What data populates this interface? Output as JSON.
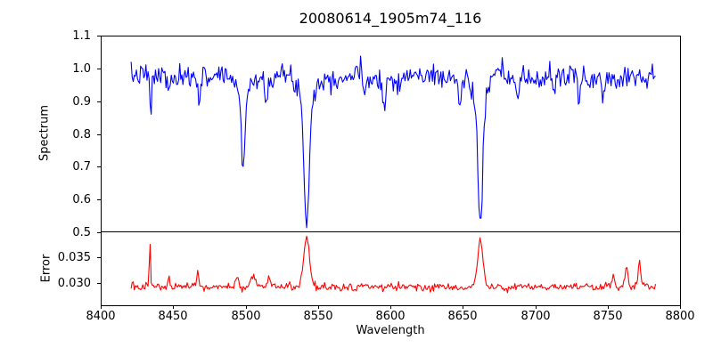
{
  "figure": {
    "title": "20080614_1905m74_116",
    "background_color": "#ffffff",
    "axis_color": "#000000"
  },
  "chart_data": [
    {
      "type": "line",
      "series_name": "spectrum",
      "line_color": "#0000ff",
      "ylabel": "Spectrum",
      "xlim": [
        8400,
        8800
      ],
      "ylim": [
        0.5,
        1.1
      ],
      "ytick_labels": [
        "1.1",
        "1.0",
        "0.9",
        "0.8",
        "0.7",
        "0.6",
        "0.5"
      ],
      "x_data_range": [
        8421,
        8783.5
      ],
      "sample_step": 0.73,
      "continuum": {
        "base": 0.973,
        "wiggles": [
          {
            "amp": 0.006,
            "period": 48
          },
          {
            "amp": 0.004,
            "period": 19
          }
        ]
      },
      "noise_std": 0.017,
      "noise_seed": 7,
      "value_clamp": [
        0.505,
        1.095
      ],
      "absorption_lines": [
        {
          "center": 8434.5,
          "depth": 0.115,
          "width": 0.6
        },
        {
          "center": 8447.0,
          "depth": 0.055,
          "width": 0.7
        },
        {
          "center": 8468.0,
          "depth": 0.06,
          "width": 0.8
        },
        {
          "center": 8498.3,
          "depth": 0.22,
          "width": 1.3
        },
        {
          "center": 8498.3,
          "depth": 0.045,
          "width": 3.5
        },
        {
          "center": 8514.0,
          "depth": 0.075,
          "width": 0.8
        },
        {
          "center": 8542.1,
          "depth": 0.38,
          "width": 1.8
        },
        {
          "center": 8542.1,
          "depth": 0.06,
          "width": 5.0
        },
        {
          "center": 8582.0,
          "depth": 0.05,
          "width": 0.8
        },
        {
          "center": 8596.0,
          "depth": 0.1,
          "width": 0.9
        },
        {
          "center": 8648.0,
          "depth": 0.08,
          "width": 0.9
        },
        {
          "center": 8662.1,
          "depth": 0.38,
          "width": 1.7
        },
        {
          "center": 8662.1,
          "depth": 0.06,
          "width": 5.0
        },
        {
          "center": 8688.0,
          "depth": 0.09,
          "width": 0.8
        },
        {
          "center": 8713.0,
          "depth": 0.05,
          "width": 0.8
        },
        {
          "center": 8730.0,
          "depth": 0.09,
          "width": 0.8
        },
        {
          "center": 8747.0,
          "depth": 0.06,
          "width": 0.8
        }
      ]
    },
    {
      "type": "line",
      "series_name": "error",
      "line_color": "#ff0000",
      "ylabel": "Error",
      "xlabel": "Wavelength",
      "xlim": [
        8400,
        8800
      ],
      "ylim": [
        0.0257,
        0.0398
      ],
      "ytick_labels": [
        "0.035",
        "0.030"
      ],
      "xtick_labels": [
        "8400",
        "8450",
        "8500",
        "8550",
        "8600",
        "8650",
        "8700",
        "8750",
        "8800"
      ],
      "x_data_range": [
        8421,
        8783.5
      ],
      "sample_step": 0.73,
      "baseline": 0.0292,
      "noise_std": 0.0004,
      "noise_seed": 13,
      "value_clamp": [
        0.0265,
        0.0396
      ],
      "error_bumps": [
        {
          "center": 8434.0,
          "height": 0.0088,
          "width": 0.5
        },
        {
          "center": 8447.0,
          "height": 0.0022,
          "width": 0.5
        },
        {
          "center": 8467.0,
          "height": 0.0028,
          "width": 0.6
        },
        {
          "center": 8494.0,
          "height": 0.0018,
          "width": 1.2
        },
        {
          "center": 8505.0,
          "height": 0.0022,
          "width": 1.5
        },
        {
          "center": 8516.0,
          "height": 0.0019,
          "width": 1.0
        },
        {
          "center": 8542.1,
          "height": 0.01,
          "width": 2.0
        },
        {
          "center": 8662.1,
          "height": 0.0092,
          "width": 1.8
        },
        {
          "center": 8754.0,
          "height": 0.0025,
          "width": 0.8
        },
        {
          "center": 8763.0,
          "height": 0.0042,
          "width": 0.9
        },
        {
          "center": 8772.0,
          "height": 0.0045,
          "width": 0.9
        }
      ]
    }
  ]
}
